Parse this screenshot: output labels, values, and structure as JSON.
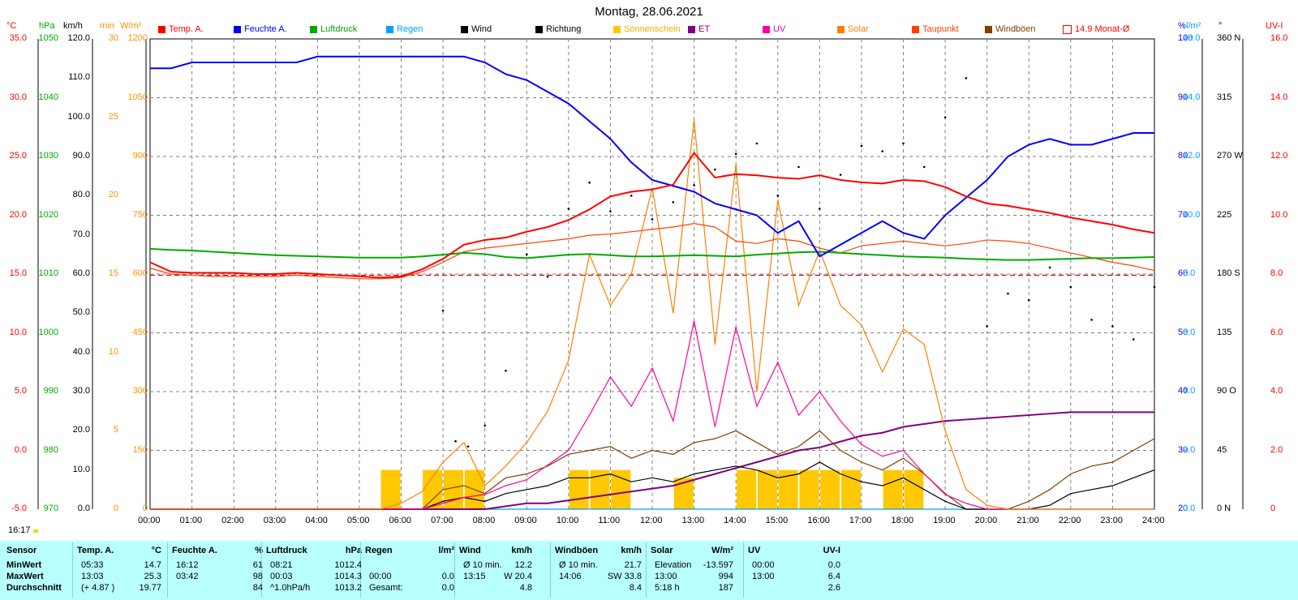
{
  "title": "Montag, 28.06.2021",
  "legend": [
    {
      "label": "Temp. A.",
      "color": "#ff0000"
    },
    {
      "label": "Feuchte A.",
      "color": "#0000ff"
    },
    {
      "label": "Luftdruck",
      "color": "#00aa00"
    },
    {
      "label": "Regen",
      "color": "#00a0ff"
    },
    {
      "label": "Wind",
      "color": "#000000"
    },
    {
      "label": "Richtung",
      "color": "#000000"
    },
    {
      "label": "Sonnenschein",
      "color": "#ffc800"
    },
    {
      "label": "ET",
      "color": "#800080"
    },
    {
      "label": "UV",
      "color": "#ff00a0"
    },
    {
      "label": "Solar",
      "color": "#ff8000"
    },
    {
      "label": "Taupunkt",
      "color": "#ff4000"
    },
    {
      "label": "Windböen",
      "color": "#804000"
    },
    {
      "label": "14.9 Monat-Ø",
      "color": "#ff0000"
    }
  ],
  "units_left": [
    {
      "text": "°C",
      "color": "#ff0000"
    },
    {
      "text": "hPa",
      "color": "#00aa00"
    },
    {
      "text": "km/h",
      "color": "#000000"
    },
    {
      "text": "min",
      "color": "#ff9000"
    },
    {
      "text": "W/m²",
      "color": "#ff9000"
    }
  ],
  "units_right": [
    {
      "text": "%",
      "color": "#0000ff"
    },
    {
      "text": "l/m²",
      "color": "#00a0ff"
    },
    {
      "text": "°",
      "color": "#000000"
    },
    {
      "text": "UV-I",
      "color": "#ff0000"
    }
  ],
  "axes": {
    "temp": [
      "35.0",
      "30.0",
      "25.0",
      "20.0",
      "15.0",
      "10.0",
      "5.0",
      "0.0",
      "-5.0"
    ],
    "hpa": [
      "1050",
      "1040",
      "1030",
      "1020",
      "1010",
      "1000",
      "990",
      "980",
      "970"
    ],
    "kmh": [
      "120.0",
      "110.0",
      "100.0",
      "90.0",
      "80.0",
      "70.0",
      "60.0",
      "50.0",
      "40.0",
      "30.0",
      "20.0",
      "10.0",
      "0.0"
    ],
    "min": [
      "30",
      "",
      "25",
      "",
      "20",
      "",
      "15",
      "",
      "10",
      "",
      "5",
      "",
      "0"
    ],
    "wm2": [
      "1200",
      "1050",
      "900",
      "750",
      "600",
      "450",
      "300",
      "150",
      "0"
    ],
    "hum": [
      "100",
      "90",
      "80",
      "70",
      "60",
      "50",
      "40",
      "30",
      "20"
    ],
    "rain": [
      "16.0",
      "14.0",
      "12.0",
      "10.0",
      "8.0",
      "6.0",
      "4.0",
      "2.0",
      "0.0"
    ],
    "dir": [
      "360 N",
      "315",
      "270 W",
      "225",
      "180 S",
      "135",
      "90 O",
      "45",
      "0 N"
    ],
    "uvi": [
      "16.0",
      "14.0",
      "12.0",
      "10.0",
      "8.0",
      "6.0",
      "4.0",
      "2.0",
      "0"
    ]
  },
  "time_labels": [
    "00:00",
    "01:00",
    "02:00",
    "03:00",
    "04:00",
    "05:00",
    "06:00",
    "07:00",
    "08:00",
    "09:00",
    "10:00",
    "11:00",
    "12:00",
    "13:00",
    "14:00",
    "15:00",
    "16:00",
    "17:00",
    "18:00",
    "19:00",
    "20:00",
    "21:00",
    "22:00",
    "23:00",
    "24:00"
  ],
  "clock": "16:17",
  "chart_data": {
    "type": "line",
    "title": "Montag, 28.06.2021",
    "x_hours": [
      0,
      0.5,
      1,
      1.5,
      2,
      2.5,
      3,
      3.5,
      4,
      4.5,
      5,
      5.5,
      6,
      6.5,
      7,
      7.5,
      8,
      8.5,
      9,
      9.5,
      10,
      10.5,
      11,
      11.5,
      12,
      12.5,
      13,
      13.5,
      14,
      14.5,
      15,
      15.5,
      16,
      16.5,
      17,
      17.5,
      18,
      18.5,
      19,
      19.5,
      20,
      20.5,
      21,
      21.5,
      22,
      22.5,
      23,
      23.5,
      24
    ],
    "series": [
      {
        "name": "Temp. A.",
        "unit": "°C",
        "color": "#ff0000",
        "values": [
          16.0,
          15.2,
          15.1,
          15.1,
          15.1,
          15.0,
          15.0,
          15.1,
          15.0,
          14.9,
          14.8,
          14.7,
          14.8,
          15.4,
          16.3,
          17.5,
          17.9,
          18.1,
          18.6,
          19.0,
          19.6,
          20.5,
          21.6,
          22.0,
          22.2,
          22.6,
          25.3,
          23.2,
          23.5,
          23.4,
          23.2,
          23.1,
          23.4,
          23.0,
          22.8,
          22.7,
          23.0,
          22.9,
          22.4,
          21.6,
          21.0,
          20.8,
          20.5,
          20.2,
          19.8,
          19.5,
          19.2,
          18.8,
          18.5
        ]
      },
      {
        "name": "Feuchte A.",
        "unit": "%",
        "color": "#0000ff",
        "values": [
          95,
          95,
          96,
          96,
          96,
          96,
          96,
          96,
          97,
          97,
          97,
          97,
          97,
          97,
          97,
          97,
          96,
          94,
          93,
          91,
          89,
          86,
          83,
          79,
          76,
          75,
          74,
          72,
          71,
          70,
          67,
          69,
          63,
          65,
          67,
          69,
          67,
          66,
          70,
          73,
          76,
          80,
          82,
          83,
          82,
          82,
          83,
          84,
          84
        ]
      },
      {
        "name": "Luftdruck",
        "unit": "hPa",
        "color": "#00aa00",
        "values": [
          1014.3,
          1014.1,
          1014.0,
          1013.8,
          1013.6,
          1013.4,
          1013.2,
          1013.1,
          1013.0,
          1012.9,
          1012.8,
          1012.8,
          1012.8,
          1013.0,
          1013.3,
          1013.6,
          1013.4,
          1012.9,
          1012.7,
          1013.0,
          1013.3,
          1013.4,
          1013.2,
          1013.0,
          1013.0,
          1013.1,
          1013.2,
          1013.1,
          1013.0,
          1013.3,
          1013.5,
          1013.7,
          1013.8,
          1013.6,
          1013.4,
          1013.2,
          1013.0,
          1012.9,
          1012.8,
          1012.6,
          1012.5,
          1012.4,
          1012.4,
          1012.5,
          1012.6,
          1012.7,
          1012.7,
          1012.8,
          1012.9
        ]
      },
      {
        "name": "Taupunkt",
        "unit": "°C",
        "color": "#ff4000",
        "values": [
          15.5,
          15.0,
          14.9,
          14.8,
          14.8,
          14.8,
          14.8,
          14.9,
          14.8,
          14.7,
          14.6,
          14.6,
          14.7,
          15.2,
          16.0,
          16.9,
          17.2,
          17.4,
          17.6,
          17.8,
          18.0,
          18.3,
          18.4,
          18.6,
          18.8,
          19.0,
          19.3,
          19.0,
          17.8,
          17.6,
          18.0,
          17.8,
          17.2,
          16.8,
          17.4,
          17.6,
          17.8,
          17.6,
          17.4,
          17.6,
          17.9,
          17.8,
          17.6,
          17.2,
          16.8,
          16.4,
          16.0,
          15.7,
          15.3
        ]
      },
      {
        "name": "Solar",
        "unit": "W/m²",
        "color": "#ff8000",
        "values": [
          0,
          0,
          0,
          0,
          0,
          0,
          0,
          0,
          0,
          0,
          0,
          0,
          15,
          45,
          120,
          170,
          60,
          110,
          170,
          250,
          380,
          650,
          520,
          600,
          820,
          500,
          994,
          420,
          880,
          300,
          790,
          520,
          660,
          520,
          470,
          350,
          460,
          420,
          200,
          50,
          10,
          0,
          0,
          0,
          0,
          0,
          0,
          0,
          0
        ]
      },
      {
        "name": "UV",
        "unit": "UV-I",
        "color": "#ff00a0",
        "values": [
          0,
          0,
          0,
          0,
          0,
          0,
          0,
          0,
          0,
          0,
          0,
          0,
          0,
          0,
          0.2,
          0.4,
          0.5,
          0.8,
          1.0,
          1.5,
          2.0,
          3.2,
          4.5,
          3.5,
          4.8,
          3.0,
          6.4,
          2.8,
          6.2,
          3.5,
          5.0,
          3.2,
          4.0,
          3.0,
          2.2,
          1.8,
          2.0,
          1.2,
          0.5,
          0.2,
          0,
          0,
          0,
          0,
          0,
          0,
          0,
          0,
          0
        ]
      },
      {
        "name": "Wind",
        "unit": "km/h",
        "color": "#000000",
        "values": [
          0,
          0,
          0,
          0,
          0,
          0,
          0,
          0,
          0,
          0,
          0,
          0,
          0,
          0,
          2,
          3,
          2,
          4,
          5,
          6,
          8,
          8,
          9,
          7,
          8,
          7,
          9,
          10,
          11,
          10,
          8,
          9,
          12,
          9,
          7,
          6,
          8,
          5,
          2,
          0,
          0,
          0,
          0,
          1,
          4,
          5,
          6,
          8,
          10
        ]
      },
      {
        "name": "Windböen",
        "unit": "km/h",
        "color": "#804000",
        "values": [
          0,
          0,
          0,
          0,
          0,
          0,
          0,
          0,
          0,
          0,
          0,
          0,
          0,
          0,
          5,
          6,
          4,
          8,
          9,
          11,
          14,
          15,
          16,
          13,
          15,
          14,
          17,
          18,
          20,
          17,
          14,
          16,
          20,
          15,
          12,
          10,
          13,
          9,
          4,
          0,
          0,
          0,
          2,
          5,
          9,
          11,
          12,
          15,
          18
        ]
      },
      {
        "name": "ET",
        "unit": "l/m²",
        "color": "#800080",
        "values": [
          0,
          0,
          0,
          0,
          0,
          0,
          0,
          0,
          0,
          0,
          0,
          0,
          0,
          0,
          0,
          0,
          0,
          0.1,
          0.2,
          0.2,
          0.3,
          0.4,
          0.5,
          0.6,
          0.7,
          0.8,
          1.0,
          1.2,
          1.4,
          1.6,
          1.8,
          2.0,
          2.1,
          2.3,
          2.5,
          2.6,
          2.8,
          2.9,
          3.0,
          3.05,
          3.1,
          3.15,
          3.2,
          3.25,
          3.3,
          3.3,
          3.3,
          3.3,
          3.3
        ]
      },
      {
        "name": "Regen",
        "unit": "l/m²",
        "color": "#00a0ff",
        "values": [
          0,
          0,
          0,
          0,
          0,
          0,
          0,
          0,
          0,
          0,
          0,
          0,
          0,
          0,
          0,
          0,
          0,
          0,
          0,
          0,
          0,
          0,
          0,
          0,
          0,
          0,
          0,
          0,
          0,
          0,
          0,
          0,
          0,
          0,
          0,
          0,
          0,
          0,
          0,
          0,
          0,
          0,
          0,
          0,
          0,
          0,
          0,
          0,
          0
        ]
      },
      {
        "name": "Richtung",
        "unit": "°",
        "color": "#000000",
        "type": "scatter",
        "x": [
          7.0,
          7.3,
          7.6,
          8.0,
          8.5,
          9.0,
          9.5,
          10.0,
          10.5,
          11.0,
          11.5,
          12.0,
          12.5,
          13.0,
          13.5,
          14.0,
          14.5,
          15.0,
          15.5,
          16.0,
          16.5,
          17.0,
          17.5,
          18.0,
          18.5,
          19.0,
          19.5,
          20.0,
          20.5,
          21.0,
          21.5,
          22.0,
          22.5,
          23.0,
          23.5,
          24.0
        ],
        "values": [
          152,
          52,
          48,
          64,
          106,
          195,
          178,
          230,
          250,
          228,
          240,
          222,
          235,
          248,
          260,
          272,
          280,
          240,
          262,
          230,
          256,
          278,
          274,
          280,
          262,
          300,
          330,
          140,
          165,
          160,
          185,
          170,
          145,
          140,
          130,
          170
        ]
      },
      {
        "name": "Sonnenschein",
        "unit": "min",
        "color": "#ffc800",
        "type": "bar",
        "x": [
          5.75,
          6.75,
          7.25,
          7.75,
          10.25,
          10.75,
          11.25,
          12.75,
          14.25,
          14.75,
          15.25,
          15.75,
          16.25,
          16.75,
          17.75,
          18.25
        ],
        "values": [
          2.5,
          2.5,
          2.5,
          2.5,
          2.5,
          2.5,
          2.5,
          2.0,
          2.5,
          2.5,
          2.5,
          2.5,
          2.5,
          2.5,
          2.5,
          2.5
        ]
      }
    ],
    "reference_line": {
      "label": "14.9 Monat-Ø",
      "value": 14.9,
      "unit": "°C"
    },
    "ylim": {
      "temp": [
        -5,
        35
      ],
      "hpa": [
        970,
        1050
      ],
      "kmh": [
        0,
        120
      ],
      "min": [
        0,
        30
      ],
      "wm2": [
        0,
        1200
      ],
      "hum": [
        20,
        100
      ],
      "rain": [
        0,
        16
      ],
      "dir": [
        0,
        360
      ],
      "uvi": [
        0,
        16
      ]
    },
    "grid": true
  },
  "stats": {
    "headers": [
      {
        "label": "Sensor"
      },
      {
        "label": "Temp. A.",
        "unit": "°C"
      },
      {
        "label": "Feuchte A.",
        "unit": "%"
      },
      {
        "label": "Luftdruck",
        "unit": "hPa"
      },
      {
        "label": "Regen",
        "unit": "l/m²"
      },
      {
        "label": "Wind",
        "unit": "km/h"
      },
      {
        "label": "Windböen",
        "unit": "km/h"
      },
      {
        "label": "Solar",
        "unit": "W/m²"
      },
      {
        "label": "UV",
        "unit": "UV-I"
      }
    ],
    "row_labels": [
      "MinWert",
      "MaxWert",
      "Durchschnitt"
    ],
    "rows": [
      [
        "05:33",
        "14.7",
        "16:12",
        "61",
        "08:21",
        "1012.4",
        "",
        "",
        "Ø 10 min.",
        "12.2",
        "Ø 10 min.",
        "21.7",
        "Elevation",
        "-13.597",
        "00:00",
        "0.0"
      ],
      [
        "13:03",
        "25.3",
        "03:42",
        "98",
        "00:03",
        "1014.3",
        "00:00",
        "0.0",
        "13:15",
        "W 20.4",
        "14:06",
        "SW 33.8",
        "13:00",
        "994",
        "13:00",
        "6.4"
      ],
      [
        "(+ 4.87 )",
        "19.77",
        "",
        "84",
        "^1.0hPa/h",
        "1013.2",
        "Gesamt:",
        "0.0",
        "",
        "4.8",
        "",
        "8.4",
        "5:18 h",
        "187",
        "",
        "2.6"
      ]
    ]
  }
}
